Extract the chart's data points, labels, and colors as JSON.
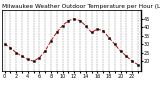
{
  "title": "Milwaukee Weather Outdoor Temperature per Hour (Last 24 Hours)",
  "hours": [
    0,
    1,
    2,
    3,
    4,
    5,
    6,
    7,
    8,
    9,
    10,
    11,
    12,
    13,
    14,
    15,
    16,
    17,
    18,
    19,
    20,
    21,
    22,
    23
  ],
  "temps": [
    30,
    28,
    25,
    23,
    21,
    20,
    22,
    26,
    32,
    37,
    41,
    44,
    45,
    44,
    41,
    37,
    39,
    38,
    34,
    30,
    26,
    23,
    20,
    18
  ],
  "line_color": "#dd0000",
  "marker_color": "#000000",
  "bg_color": "#ffffff",
  "grid_color": "#888888",
  "ylim": [
    14,
    50
  ],
  "yticks_right": [
    20,
    25,
    30,
    35,
    40,
    45
  ],
  "ytick_labels_right": [
    "20",
    "25",
    "30",
    "35",
    "40",
    "45"
  ],
  "xtick_step": 2,
  "title_fontsize": 4.2,
  "tick_fontsize": 3.5,
  "linewidth": 0.7,
  "markersize": 1.4,
  "grid_linewidth": 0.35
}
